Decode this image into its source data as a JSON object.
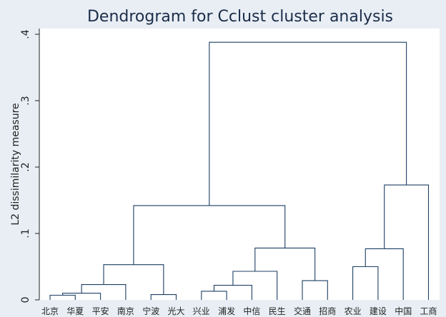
{
  "chart_data": {
    "type": "dendrogram",
    "title": "Dendrogram for Cclust cluster analysis",
    "ylabel": "L2 dissimilarity measure",
    "xlabel": "",
    "ylim": [
      0,
      0.4
    ],
    "yticks": [
      0,
      0.1,
      0.2,
      0.3,
      0.4
    ],
    "ytick_labels": [
      "0",
      ".1",
      ".2",
      ".3",
      ".4"
    ],
    "leaves": [
      "北京",
      "华夏",
      "平安",
      "南京",
      "宁波",
      "光大",
      "兴业",
      "浦发",
      "中信",
      "民生",
      "交通",
      "招商",
      "农业",
      "建设",
      "中国",
      "工商"
    ],
    "merges": [
      {
        "left": "北京",
        "right": "华夏",
        "height": 0.007
      },
      {
        "left": "c1",
        "right": "平安",
        "height": 0.01
      },
      {
        "left": "c2",
        "right": "南京",
        "height": 0.023
      },
      {
        "left": "宁波",
        "right": "光大",
        "height": 0.008
      },
      {
        "left": "c3",
        "right": "c4",
        "height": 0.053
      },
      {
        "left": "兴业",
        "right": "浦发",
        "height": 0.013
      },
      {
        "left": "c6",
        "right": "中信",
        "height": 0.022
      },
      {
        "left": "c7",
        "right": "民生",
        "height": 0.043
      },
      {
        "left": "交通",
        "right": "招商",
        "height": 0.029
      },
      {
        "left": "c8",
        "right": "c9",
        "height": 0.078
      },
      {
        "left": "c5",
        "right": "c10",
        "height": 0.142
      },
      {
        "left": "农业",
        "right": "建设",
        "height": 0.05
      },
      {
        "left": "c12",
        "right": "中国",
        "height": 0.077
      },
      {
        "left": "c13",
        "right": "工商",
        "height": 0.173
      },
      {
        "left": "c11",
        "right": "c14",
        "height": 0.388
      }
    ]
  }
}
